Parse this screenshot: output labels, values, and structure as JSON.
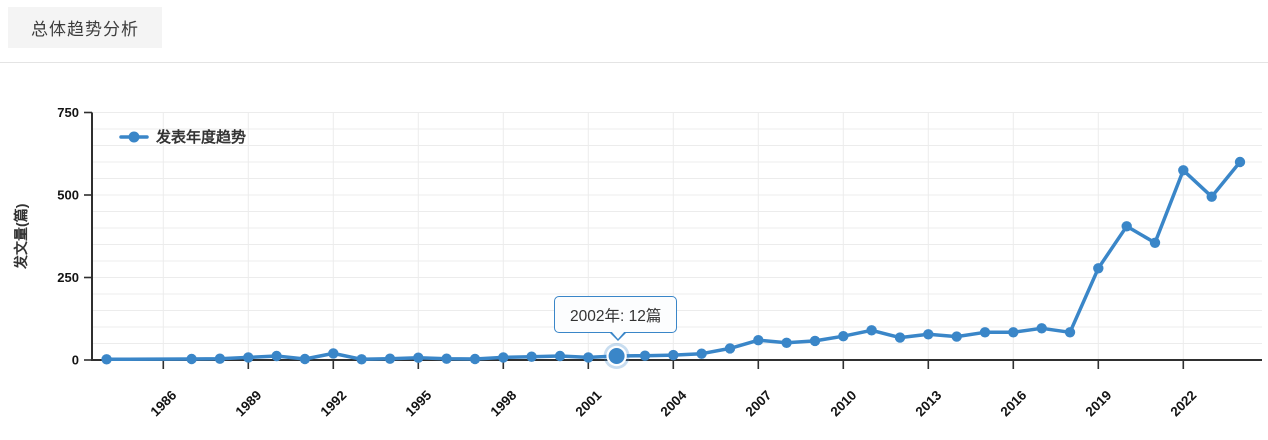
{
  "header": {
    "title": "总体趋势分析"
  },
  "chart_data": {
    "type": "line",
    "series": [
      {
        "name": "发表年度趋势",
        "points": [
          [
            1984,
            2
          ],
          [
            1987,
            3
          ],
          [
            1988,
            4
          ],
          [
            1989,
            8
          ],
          [
            1990,
            12
          ],
          [
            1991,
            3
          ],
          [
            1992,
            20
          ],
          [
            1993,
            2
          ],
          [
            1994,
            4
          ],
          [
            1995,
            7
          ],
          [
            1996,
            4
          ],
          [
            1997,
            3
          ],
          [
            1998,
            8
          ],
          [
            1999,
            10
          ],
          [
            2000,
            12
          ],
          [
            2001,
            8
          ],
          [
            2002,
            12
          ],
          [
            2003,
            13
          ],
          [
            2004,
            15
          ],
          [
            2005,
            19
          ],
          [
            2006,
            35
          ],
          [
            2007,
            60
          ],
          [
            2008,
            52
          ],
          [
            2009,
            58
          ],
          [
            2010,
            72
          ],
          [
            2011,
            90
          ],
          [
            2012,
            68
          ],
          [
            2013,
            78
          ],
          [
            2014,
            71
          ],
          [
            2015,
            84
          ],
          [
            2016,
            84
          ],
          [
            2017,
            96
          ],
          [
            2018,
            84
          ],
          [
            2019,
            278
          ],
          [
            2020,
            405
          ],
          [
            2021,
            355
          ],
          [
            2022,
            575
          ],
          [
            2023,
            495
          ],
          [
            2024,
            600
          ]
        ]
      }
    ],
    "xlabel": "",
    "ylabel": "发文量(篇)",
    "ylim": [
      0,
      750
    ],
    "yticks": [
      0,
      250,
      500,
      750
    ],
    "xticks": [
      1986,
      1989,
      1992,
      1995,
      1998,
      2001,
      2004,
      2007,
      2010,
      2013,
      2016,
      2019,
      2022
    ],
    "grid": true,
    "grid_step_y": 50,
    "legend_position": "top-left",
    "highlight_year": 2002
  },
  "tooltip": {
    "text": "2002年: 12篇"
  },
  "colors": {
    "accent": "#3a86c8",
    "grid": "#ececec",
    "axis": "#2f2f2f",
    "title_bg": "#f4f4f4",
    "text": "#333333"
  }
}
